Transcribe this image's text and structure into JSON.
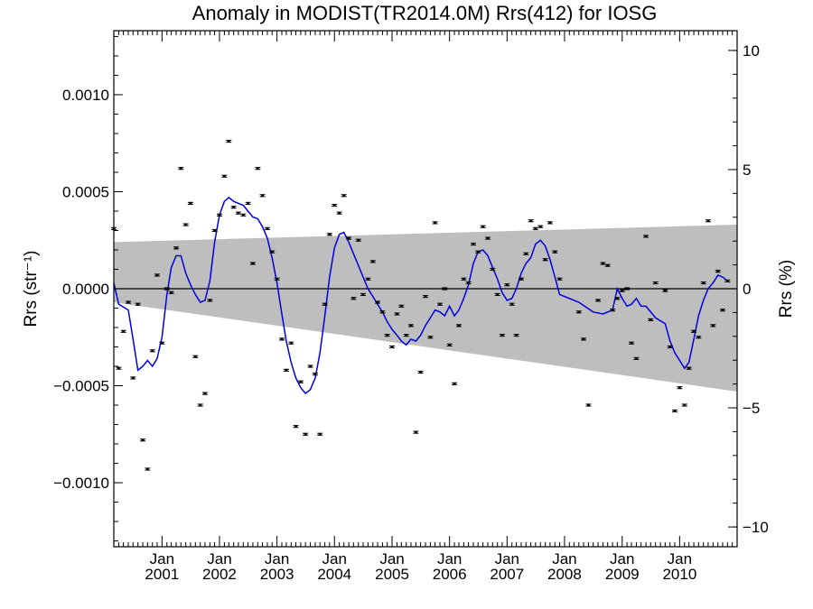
{
  "chart_data": {
    "type": "scatter",
    "title": "Anomaly in MODIST(TR2014.0M) Rrs(412) for IOSG",
    "ylabel_left": "Rrs (str⁻¹)",
    "ylabel_right": "Rrs (%)",
    "xlabel": "",
    "xlim": [
      "2000-03-01",
      "2011-01-01"
    ],
    "ylim": [
      -0.00133,
      0.00133
    ],
    "ylim_right": [
      -10.83,
      10.83
    ],
    "x_ticks": [
      {
        "date": "2001-01-01",
        "line1": "Jan",
        "line2": "2001"
      },
      {
        "date": "2002-01-01",
        "line1": "Jan",
        "line2": "2002"
      },
      {
        "date": "2003-01-01",
        "line1": "Jan",
        "line2": "2003"
      },
      {
        "date": "2004-01-01",
        "line1": "Jan",
        "line2": "2004"
      },
      {
        "date": "2005-01-01",
        "line1": "Jan",
        "line2": "2005"
      },
      {
        "date": "2006-01-01",
        "line1": "Jan",
        "line2": "2006"
      },
      {
        "date": "2007-01-01",
        "line1": "Jan",
        "line2": "2007"
      },
      {
        "date": "2008-01-01",
        "line1": "Jan",
        "line2": "2008"
      },
      {
        "date": "2009-01-01",
        "line1": "Jan",
        "line2": "2009"
      },
      {
        "date": "2010-01-01",
        "line1": "Jan",
        "line2": "2010"
      }
    ],
    "y_ticks_left": [
      {
        "value": 0.001,
        "label": "0.0010"
      },
      {
        "value": 0.0005,
        "label": "0.0005"
      },
      {
        "value": 0.0,
        "label": "0.0000"
      },
      {
        "value": -0.0005,
        "label": "−0.0005"
      },
      {
        "value": -0.001,
        "label": "−0.0010"
      }
    ],
    "y_ticks_right": [
      {
        "value": 10,
        "label": "10"
      },
      {
        "value": 5,
        "label": "5"
      },
      {
        "value": 0,
        "label": "0"
      },
      {
        "value": -5,
        "label": "−5"
      },
      {
        "value": -10,
        "label": "−10"
      }
    ],
    "colors": {
      "points": "#000000",
      "smooth_line": "#0000dd",
      "band": "#bebebe",
      "zero_line": "#000000"
    },
    "band": {
      "upper": [
        [
          "2000-03-01",
          0.00024
        ],
        [
          "2011-01-01",
          0.00033
        ]
      ],
      "lower": [
        [
          "2000-03-01",
          -7e-05
        ],
        [
          "2011-01-01",
          -0.00053
        ]
      ]
    },
    "series": [
      {
        "kind": "monthly_anomaly_points_with_error_bars",
        "error": 5e-06,
        "points": [
          [
            "2000-03-01",
            0.00031
          ],
          [
            "2000-04-01",
            -0.00041
          ],
          [
            "2000-05-01",
            -0.00022
          ],
          [
            "2000-06-01",
            -7e-05
          ],
          [
            "2000-07-01",
            -0.00046
          ],
          [
            "2000-08-01",
            -8e-05
          ],
          [
            "2000-09-01",
            -0.00078
          ],
          [
            "2000-10-01",
            -0.00093
          ],
          [
            "2000-11-01",
            -0.00032
          ],
          [
            "2000-12-01",
            7e-05
          ],
          [
            "2001-01-01",
            -0.00028
          ],
          [
            "2001-02-01",
            0.0
          ],
          [
            "2001-03-01",
            -2e-05
          ],
          [
            "2001-04-01",
            0.00021
          ],
          [
            "2001-05-01",
            0.00062
          ],
          [
            "2001-06-01",
            0.00033
          ],
          [
            "2001-07-01",
            0.00044
          ],
          [
            "2001-08-01",
            -0.00035
          ],
          [
            "2001-09-01",
            -0.0006
          ],
          [
            "2001-10-01",
            -0.00054
          ],
          [
            "2001-11-01",
            -6e-05
          ],
          [
            "2001-12-01",
            0.0003
          ],
          [
            "2002-01-01",
            0.00038
          ],
          [
            "2002-02-01",
            0.00058
          ],
          [
            "2002-03-01",
            0.00076
          ],
          [
            "2002-04-01",
            0.00042
          ],
          [
            "2002-05-01",
            0.00039
          ],
          [
            "2002-06-01",
            0.00038
          ],
          [
            "2002-07-01",
            0.00044
          ],
          [
            "2002-08-01",
            0.00013
          ],
          [
            "2002-09-01",
            0.00062
          ],
          [
            "2002-10-01",
            0.00048
          ],
          [
            "2002-11-01",
            0.00031
          ],
          [
            "2002-12-01",
            0.00019
          ],
          [
            "2003-01-01",
            5e-05
          ],
          [
            "2003-02-01",
            -0.00026
          ],
          [
            "2003-03-01",
            -0.00042
          ],
          [
            "2003-04-01",
            -0.00028
          ],
          [
            "2003-05-01",
            -0.00071
          ],
          [
            "2003-06-01",
            -0.00048
          ],
          [
            "2003-07-01",
            -0.00075
          ],
          [
            "2003-08-01",
            -0.0004
          ],
          [
            "2003-09-01",
            -0.00044
          ],
          [
            "2003-10-01",
            -0.00075
          ],
          [
            "2003-11-01",
            -8e-05
          ],
          [
            "2003-12-01",
            0.00028
          ],
          [
            "2004-01-01",
            0.00043
          ],
          [
            "2004-02-01",
            0.00039
          ],
          [
            "2004-03-01",
            0.00048
          ],
          [
            "2004-04-01",
            0.00026
          ],
          [
            "2004-05-01",
            -5e-05
          ],
          [
            "2004-06-01",
            0.00025
          ],
          [
            "2004-07-01",
            -3e-05
          ],
          [
            "2004-08-01",
            5e-05
          ],
          [
            "2004-09-01",
            0.00014
          ],
          [
            "2004-10-01",
            -7e-05
          ],
          [
            "2004-11-01",
            -0.00012
          ],
          [
            "2004-12-01",
            -0.00024
          ],
          [
            "2005-01-01",
            -0.0003
          ],
          [
            "2005-02-01",
            -0.00013
          ],
          [
            "2005-03-01",
            -9e-05
          ],
          [
            "2005-04-01",
            -0.00024
          ],
          [
            "2005-05-01",
            -0.00019
          ],
          [
            "2005-06-01",
            -0.00074
          ],
          [
            "2005-07-01",
            -0.00043
          ],
          [
            "2005-08-01",
            -4e-05
          ],
          [
            "2005-09-01",
            -0.00025
          ],
          [
            "2005-10-01",
            0.00034
          ],
          [
            "2005-11-01",
            -8e-05
          ],
          [
            "2005-12-01",
            0.0
          ],
          [
            "2006-01-01",
            -0.00029
          ],
          [
            "2006-02-01",
            -0.00049
          ],
          [
            "2006-03-01",
            -0.00019
          ],
          [
            "2006-04-01",
            5e-05
          ],
          [
            "2006-05-01",
            3e-05
          ],
          [
            "2006-06-01",
            0.00023
          ],
          [
            "2006-07-01",
            0.00019
          ],
          [
            "2006-08-01",
            0.00032
          ],
          [
            "2006-09-01",
            0.00026
          ],
          [
            "2006-10-01",
            0.0001
          ],
          [
            "2006-11-01",
            -3e-05
          ],
          [
            "2006-12-01",
            -0.00024
          ],
          [
            "2007-01-01",
            2e-05
          ],
          [
            "2007-02-01",
            -8e-05
          ],
          [
            "2007-03-01",
            -0.00024
          ],
          [
            "2007-04-01",
            5e-05
          ],
          [
            "2007-05-01",
            0.00018
          ],
          [
            "2007-06-01",
            0.00035
          ],
          [
            "2007-07-01",
            0.00031
          ],
          [
            "2007-08-01",
            0.00032
          ],
          [
            "2007-09-01",
            0.00015
          ],
          [
            "2007-10-01",
            0.00034
          ],
          [
            "2007-11-01",
            0.00019
          ],
          [
            "2007-12-01",
            5e-05
          ],
          [
            "2008-04-01",
            -0.00012
          ],
          [
            "2008-05-01",
            -0.00026
          ],
          [
            "2008-06-01",
            -0.0006
          ],
          [
            "2008-08-01",
            -6e-05
          ],
          [
            "2008-09-01",
            0.00013
          ],
          [
            "2008-10-01",
            0.00012
          ],
          [
            "2008-11-01",
            -0.00011
          ],
          [
            "2008-12-01",
            -5e-05
          ],
          [
            "2009-01-01",
            -1e-05
          ],
          [
            "2009-02-01",
            0.0
          ],
          [
            "2009-03-01",
            -0.00028
          ],
          [
            "2009-04-01",
            -0.00036
          ],
          [
            "2009-06-01",
            0.00027
          ],
          [
            "2009-07-01",
            -0.00016
          ],
          [
            "2009-08-01",
            3e-05
          ],
          [
            "2009-10-01",
            -1e-05
          ],
          [
            "2009-11-01",
            -0.0003
          ],
          [
            "2009-12-01",
            -0.00063
          ],
          [
            "2010-01-01",
            -0.00051
          ],
          [
            "2010-02-01",
            -0.0006
          ],
          [
            "2010-03-01",
            -0.00041
          ],
          [
            "2010-04-01",
            -0.00022
          ],
          [
            "2010-05-01",
            -0.00025
          ],
          [
            "2010-06-01",
            3e-05
          ],
          [
            "2010-07-01",
            0.00035
          ],
          [
            "2010-08-01",
            -0.00019
          ],
          [
            "2010-09-01",
            9e-05
          ],
          [
            "2010-10-01",
            -0.00011
          ],
          [
            "2010-11-01",
            4e-05
          ]
        ]
      },
      {
        "kind": "smoothed_line",
        "points": [
          [
            "2000-03-01",
            3e-05
          ],
          [
            "2000-04-01",
            -8e-05
          ],
          [
            "2000-06-01",
            -0.00011
          ],
          [
            "2000-07-01",
            -0.00026
          ],
          [
            "2000-08-01",
            -0.00042
          ],
          [
            "2000-09-01",
            -0.0004
          ],
          [
            "2000-10-01",
            -0.00037
          ],
          [
            "2000-11-01",
            -0.0004
          ],
          [
            "2000-12-01",
            -0.00036
          ],
          [
            "2001-01-01",
            -0.00025
          ],
          [
            "2001-02-01",
            -3e-05
          ],
          [
            "2001-03-01",
            0.00011
          ],
          [
            "2001-04-01",
            0.00017
          ],
          [
            "2001-05-01",
            0.00017
          ],
          [
            "2001-06-01",
            8e-05
          ],
          [
            "2001-07-01",
            2e-05
          ],
          [
            "2001-08-01",
            -3e-05
          ],
          [
            "2001-09-01",
            -7e-05
          ],
          [
            "2001-10-01",
            -6e-05
          ],
          [
            "2001-11-01",
            4e-05
          ],
          [
            "2001-12-01",
            0.00024
          ],
          [
            "2002-01-01",
            0.00038
          ],
          [
            "2002-02-01",
            0.00045
          ],
          [
            "2002-03-01",
            0.00047
          ],
          [
            "2002-04-01",
            0.00045
          ],
          [
            "2002-05-01",
            0.00044
          ],
          [
            "2002-06-01",
            0.00043
          ],
          [
            "2002-07-01",
            0.0004
          ],
          [
            "2002-08-01",
            0.00037
          ],
          [
            "2002-09-01",
            0.00036
          ],
          [
            "2002-10-01",
            0.00032
          ],
          [
            "2002-11-01",
            0.00026
          ],
          [
            "2002-12-01",
            0.00016
          ],
          [
            "2003-01-01",
            3e-05
          ],
          [
            "2003-02-01",
            -0.00013
          ],
          [
            "2003-03-01",
            -0.00027
          ],
          [
            "2003-04-01",
            -0.00038
          ],
          [
            "2003-05-01",
            -0.00046
          ],
          [
            "2003-06-01",
            -0.00051
          ],
          [
            "2003-07-01",
            -0.00054
          ],
          [
            "2003-08-01",
            -0.00052
          ],
          [
            "2003-09-01",
            -0.00046
          ],
          [
            "2003-10-01",
            -0.00033
          ],
          [
            "2003-11-01",
            -0.00014
          ],
          [
            "2003-12-01",
            6e-05
          ],
          [
            "2004-01-01",
            0.00021
          ],
          [
            "2004-02-01",
            0.00028
          ],
          [
            "2004-03-01",
            0.00029
          ],
          [
            "2004-04-01",
            0.00024
          ],
          [
            "2004-05-01",
            0.00018
          ],
          [
            "2004-06-01",
            0.00012
          ],
          [
            "2004-07-01",
            6e-05
          ],
          [
            "2004-08-01",
            0.0
          ],
          [
            "2004-09-01",
            -4e-05
          ],
          [
            "2004-10-01",
            -8e-05
          ],
          [
            "2004-11-01",
            -0.00012
          ],
          [
            "2004-12-01",
            -0.00017
          ],
          [
            "2005-01-01",
            -0.00021
          ],
          [
            "2005-02-01",
            -0.00024
          ],
          [
            "2005-03-01",
            -0.00027
          ],
          [
            "2005-04-01",
            -0.00029
          ],
          [
            "2005-05-01",
            -0.00026
          ],
          [
            "2005-06-01",
            -0.00027
          ],
          [
            "2005-07-01",
            -0.00024
          ],
          [
            "2005-08-01",
            -0.00019
          ],
          [
            "2005-09-01",
            -0.00015
          ],
          [
            "2005-10-01",
            -0.00011
          ],
          [
            "2005-11-01",
            -0.00012
          ],
          [
            "2005-12-01",
            -0.00014
          ],
          [
            "2006-01-01",
            -9e-05
          ],
          [
            "2006-02-01",
            -0.00014
          ],
          [
            "2006-03-01",
            -0.00011
          ],
          [
            "2006-04-01",
            -5e-05
          ],
          [
            "2006-05-01",
            2e-05
          ],
          [
            "2006-06-01",
            0.00013
          ],
          [
            "2006-07-01",
            0.00019
          ],
          [
            "2006-08-01",
            0.0002
          ],
          [
            "2006-09-01",
            0.00017
          ],
          [
            "2006-10-01",
            0.00011
          ],
          [
            "2006-11-01",
            5e-05
          ],
          [
            "2006-12-01",
            -2e-05
          ],
          [
            "2007-01-01",
            -6e-05
          ],
          [
            "2007-02-01",
            -5e-05
          ],
          [
            "2007-03-01",
            0.0
          ],
          [
            "2007-04-01",
            8e-05
          ],
          [
            "2007-05-01",
            0.00013
          ],
          [
            "2007-06-01",
            0.00016
          ],
          [
            "2007-07-01",
            0.00023
          ],
          [
            "2007-08-01",
            0.00025
          ],
          [
            "2007-09-01",
            0.00022
          ],
          [
            "2007-10-01",
            0.00015
          ],
          [
            "2007-11-01",
            6e-05
          ],
          [
            "2007-12-01",
            -3e-05
          ],
          [
            "2008-04-01",
            -7e-05
          ],
          [
            "2008-07-01",
            -0.00012
          ],
          [
            "2008-09-01",
            -0.00013
          ],
          [
            "2008-11-01",
            -0.00011
          ],
          [
            "2008-12-01",
            0.0
          ],
          [
            "2009-01-01",
            -5e-05
          ],
          [
            "2009-02-01",
            -9e-05
          ],
          [
            "2009-03-01",
            -8e-05
          ],
          [
            "2009-04-01",
            -5e-05
          ],
          [
            "2009-05-01",
            -9e-05
          ],
          [
            "2009-06-01",
            -9e-05
          ],
          [
            "2009-08-01",
            -0.00015
          ],
          [
            "2009-10-01",
            -0.00018
          ],
          [
            "2009-11-01",
            -0.00027
          ],
          [
            "2009-12-01",
            -0.00033
          ],
          [
            "2010-01-01",
            -0.00037
          ],
          [
            "2010-02-01",
            -0.00041
          ],
          [
            "2010-03-01",
            -0.00038
          ],
          [
            "2010-04-01",
            -0.00026
          ],
          [
            "2010-05-01",
            -0.00014
          ],
          [
            "2010-06-01",
            -6e-05
          ],
          [
            "2010-07-01",
            0.0
          ],
          [
            "2010-08-01",
            3e-05
          ],
          [
            "2010-09-01",
            7e-05
          ],
          [
            "2010-10-01",
            6e-05
          ],
          [
            "2010-11-01",
            4e-05
          ]
        ]
      }
    ],
    "zero_line": 0,
    "grid": false,
    "legend": "none"
  }
}
